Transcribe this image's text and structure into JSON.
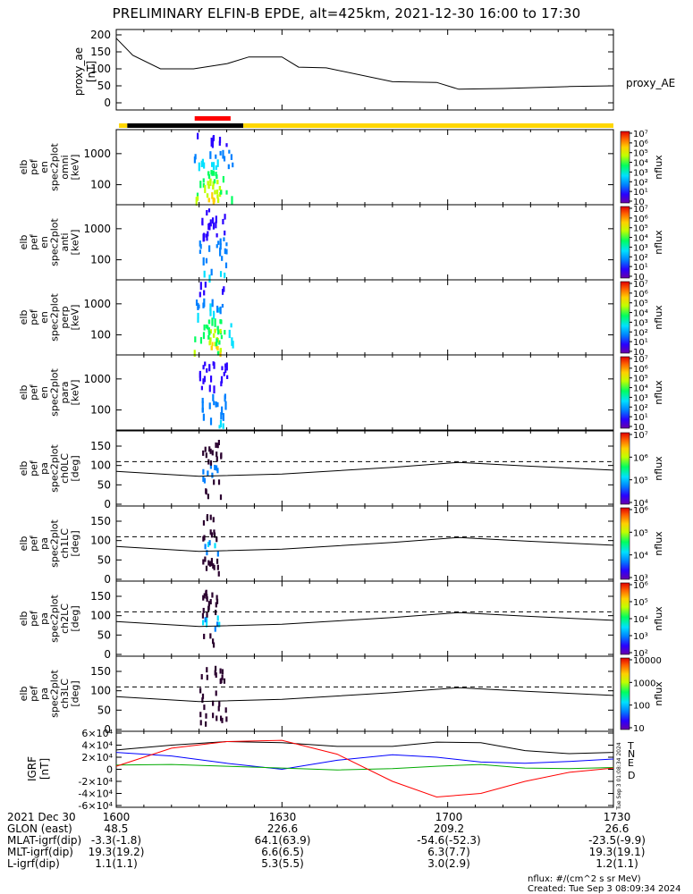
{
  "title": "PRELIMINARY ELFIN-B EPDE, alt=425km, 2021-12-30 16:00 to 17:30",
  "chart_data": [
    {
      "type": "line",
      "name": "proxy_ae",
      "ylabel": [
        "proxy_ae",
        "[nT]"
      ],
      "legend": "proxy_AE",
      "ylim": [
        0,
        200
      ],
      "yticks": [
        "0",
        "50",
        "100",
        "150",
        "200"
      ],
      "x_minutes": [
        0,
        3,
        8,
        14,
        20,
        24,
        30,
        33,
        38,
        50,
        58,
        62,
        70,
        82,
        90
      ],
      "values": [
        190,
        140,
        100,
        100,
        115,
        135,
        135,
        105,
        103,
        62,
        60,
        40,
        42,
        48,
        50
      ]
    },
    {
      "type": "bar",
      "name": "state_bar",
      "segments": [
        {
          "from": 0.5,
          "to": 2,
          "color": "#ffd700"
        },
        {
          "from": 2,
          "to": 23,
          "color": "#000000"
        },
        {
          "from": 23,
          "to": 90,
          "color": "#ffd700"
        }
      ],
      "marker": {
        "from": 14.2,
        "to": 20.7,
        "color": "#ff0000"
      }
    },
    {
      "type": "heatmap",
      "name": "elb_pef_en_spec2plot_omni",
      "ylabel": [
        "elb",
        "pef",
        "en",
        "spec2plot",
        "omni",
        "[keV]"
      ],
      "yticks": [
        "100",
        "1000"
      ],
      "colorbar": {
        "label": "nflux",
        "ticks": [
          "10",
          "10¹",
          "10²",
          "10³",
          "10⁴",
          "10⁵",
          "10⁶",
          "10⁷"
        ]
      },
      "burst_minutes": [
        14,
        21
      ],
      "peak_minute": 17
    },
    {
      "type": "heatmap",
      "name": "elb_pef_en_spec2plot_anti",
      "ylabel": [
        "elb",
        "pef",
        "en",
        "spec2plot",
        "anti",
        "[keV]"
      ],
      "yticks": [
        "100",
        "1000"
      ],
      "colorbar": {
        "label": "nflux",
        "ticks": [
          "10",
          "10¹",
          "10²",
          "10³",
          "10⁴",
          "10⁵",
          "10⁶",
          "10⁷"
        ]
      },
      "burst_minutes": [
        15,
        20
      ],
      "peak_minute": 17
    },
    {
      "type": "heatmap",
      "name": "elb_pef_en_spec2plot_perp",
      "ylabel": [
        "elb",
        "pef",
        "en",
        "spec2plot",
        "perp",
        "[keV]"
      ],
      "yticks": [
        "100",
        "1000"
      ],
      "colorbar": {
        "label": "nflux",
        "ticks": [
          "10",
          "10¹",
          "10²",
          "10³",
          "10⁴",
          "10⁵",
          "10⁶",
          "10⁷"
        ]
      },
      "burst_minutes": [
        14,
        21
      ],
      "peak_minute": 17
    },
    {
      "type": "heatmap",
      "name": "elb_pef_en_spec2plot_para",
      "ylabel": [
        "elb",
        "pef",
        "en",
        "spec2plot",
        "para",
        "[keV]"
      ],
      "yticks": [
        "100",
        "1000"
      ],
      "colorbar": {
        "label": "nflux",
        "ticks": [
          "10",
          "10¹",
          "10²",
          "10³",
          "10⁴",
          "10⁵",
          "10⁶",
          "10⁷"
        ]
      },
      "burst_minutes": [
        15,
        20
      ],
      "peak_minute": 17
    },
    {
      "type": "heatmap",
      "name": "elb_pef_pa_spec2plot_ch0LC",
      "ylabel": [
        "elb",
        "pef",
        "pa",
        "spec2plot",
        "ch0LC",
        "[deg]"
      ],
      "ylim": [
        0,
        180
      ],
      "yticks": [
        "0",
        "50",
        "100",
        "150"
      ],
      "colorbar": {
        "label": "nflux",
        "ticks": [
          "10⁴",
          "10⁵",
          "10⁶",
          "10⁷"
        ]
      },
      "burst_minutes": [
        15.5,
        19
      ],
      "losscone_upper_deg": 110,
      "losscone_minutes": [
        0,
        15,
        30,
        50,
        62,
        75,
        90
      ],
      "losscone_lower_deg": [
        85,
        72,
        78,
        95,
        108,
        98,
        88
      ]
    },
    {
      "type": "heatmap",
      "name": "elb_pef_pa_spec2plot_ch1LC",
      "ylabel": [
        "elb",
        "pef",
        "pa",
        "spec2plot",
        "ch1LC",
        "[deg]"
      ],
      "ylim": [
        0,
        180
      ],
      "yticks": [
        "0",
        "50",
        "100",
        "150"
      ],
      "colorbar": {
        "label": "nflux",
        "ticks": [
          "10³",
          "10⁴",
          "10⁵",
          "10⁶"
        ]
      },
      "burst_minutes": [
        15.5,
        18.5
      ],
      "losscone_upper_deg": 110,
      "losscone_minutes": [
        0,
        15,
        30,
        50,
        62,
        75,
        90
      ],
      "losscone_lower_deg": [
        85,
        72,
        78,
        95,
        108,
        98,
        88
      ]
    },
    {
      "type": "heatmap",
      "name": "elb_pef_pa_spec2plot_ch2LC",
      "ylabel": [
        "elb",
        "pef",
        "pa",
        "spec2plot",
        "ch2LC",
        "[deg]"
      ],
      "ylim": [
        0,
        180
      ],
      "yticks": [
        "0",
        "50",
        "100",
        "150"
      ],
      "colorbar": {
        "label": "nflux",
        "ticks": [
          "10²",
          "10³",
          "10⁴",
          "10⁵",
          "10⁶"
        ]
      },
      "burst_minutes": [
        15.5,
        18.5
      ],
      "losscone_upper_deg": 110,
      "losscone_minutes": [
        0,
        15,
        30,
        50,
        62,
        75,
        90
      ],
      "losscone_lower_deg": [
        85,
        72,
        78,
        95,
        108,
        98,
        88
      ]
    },
    {
      "type": "heatmap",
      "name": "elb_pef_pa_spec2plot_ch3LC",
      "ylabel": [
        "elb",
        "pef",
        "pa",
        "spec2plot",
        "ch3LC",
        "[deg]"
      ],
      "ylim": [
        0,
        180
      ],
      "yticks": [
        "0",
        "50",
        "100",
        "150"
      ],
      "colorbar": {
        "label": "nflux",
        "ticks": [
          "10",
          "100",
          "1000",
          "10000"
        ]
      },
      "burst_minutes": [
        15,
        20
      ],
      "losscone_upper_deg": 110,
      "losscone_minutes": [
        0,
        15,
        30,
        50,
        62,
        75,
        90
      ],
      "losscone_lower_deg": [
        85,
        72,
        78,
        95,
        108,
        98,
        88
      ]
    },
    {
      "type": "line",
      "name": "IGRF",
      "ylabel": [
        "IGRF",
        "[nT]"
      ],
      "ylim": [
        -60000,
        60000
      ],
      "yticks": [
        "-6×10⁴",
        "-4×10⁴",
        "-2×10⁴",
        "0",
        "2×10⁴",
        "4×10⁴",
        "6×10⁴"
      ],
      "x_minutes": [
        0,
        10,
        20,
        30,
        40,
        50,
        58,
        66,
        74,
        82,
        90
      ],
      "series": [
        {
          "name": "T",
          "color": "#000000",
          "values": [
            32000,
            40000,
            46000,
            44000,
            38000,
            38000,
            45000,
            44000,
            31000,
            26000,
            28000
          ]
        },
        {
          "name": "N",
          "color": "#0000ff",
          "values": [
            28000,
            22000,
            10000,
            0,
            15000,
            24000,
            20000,
            12000,
            10000,
            13000,
            17000
          ]
        },
        {
          "name": "E",
          "color": "#00aa00",
          "values": [
            7000,
            8000,
            5000,
            2000,
            -1000,
            1000,
            5000,
            8000,
            2000,
            1000,
            3000
          ]
        },
        {
          "name": "D",
          "color": "#ff0000",
          "values": [
            5000,
            35000,
            46000,
            48000,
            25000,
            -20000,
            -46000,
            -40000,
            -20000,
            -5000,
            2000
          ]
        }
      ]
    }
  ],
  "x_axis": {
    "ticks": [
      "1600",
      "1630",
      "1700",
      "1730"
    ],
    "rows": [
      {
        "label": "2021 Dec 30",
        "values": [
          "1600",
          "1630",
          "1700",
          "1730"
        ]
      },
      {
        "label": "GLON (east)",
        "values": [
          "48.5",
          "226.6",
          "209.2",
          "26.6"
        ]
      },
      {
        "label": "MLAT-igrf(dip)",
        "values": [
          "-3.3(-1.8)",
          "64.1(63.9)",
          "-54.6(-52.3)",
          "-23.5(-9.9)"
        ]
      },
      {
        "label": "MLT-igrf(dip)",
        "values": [
          "19.3(19.2)",
          "6.6(6.5)",
          "6.3(7.7)",
          "19.3(19.1)"
        ]
      },
      {
        "label": "L-igrf(dip)",
        "values": [
          "1.1(1.1)",
          "5.3(5.5)",
          "3.0(2.9)",
          "1.2(1.1)"
        ]
      }
    ]
  },
  "side_stamp": "Tue Sep  3 01:08:34 2024",
  "footer": {
    "units": "nflux: #/(cm^2 s sr MeV)",
    "created": "Created: Tue Sep  3 08:09:34 2024"
  }
}
